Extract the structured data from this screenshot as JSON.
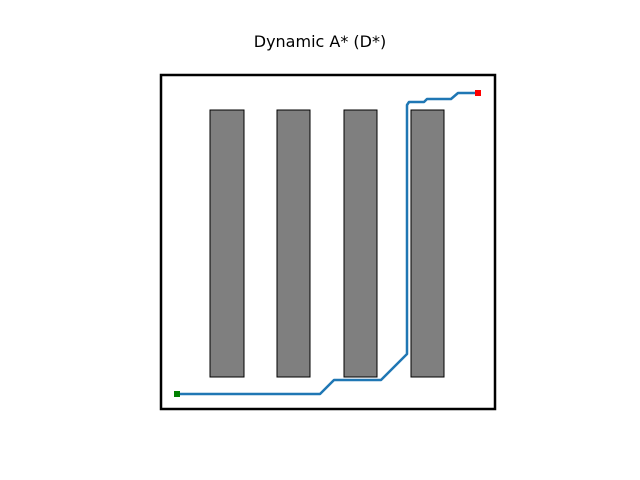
{
  "title": "Dynamic A* (D*)",
  "colors": {
    "obstacle": "#7f7f7f",
    "path": "#1f77b4",
    "start": "#008000",
    "goal": "#ff0000",
    "border": "#000000"
  }
}
